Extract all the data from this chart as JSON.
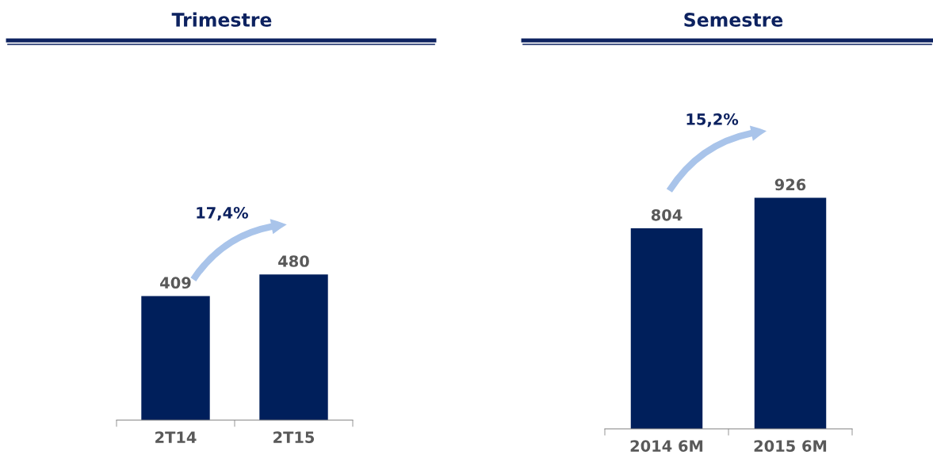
{
  "chart_data": [
    {
      "type": "bar",
      "title": "Trimestre",
      "categories": [
        "2T14",
        "2T15"
      ],
      "values": [
        409,
        480
      ],
      "color": "#001f5b",
      "data_labels": true,
      "annotations": [
        "17,4%"
      ]
    },
    {
      "type": "bar",
      "title": "Semestre",
      "categories": [
        "2014 6M",
        "2015 6M"
      ],
      "values": [
        804,
        926
      ],
      "color": "#001f5b",
      "data_labels": true,
      "annotations": [
        "15,2%"
      ]
    }
  ]
}
